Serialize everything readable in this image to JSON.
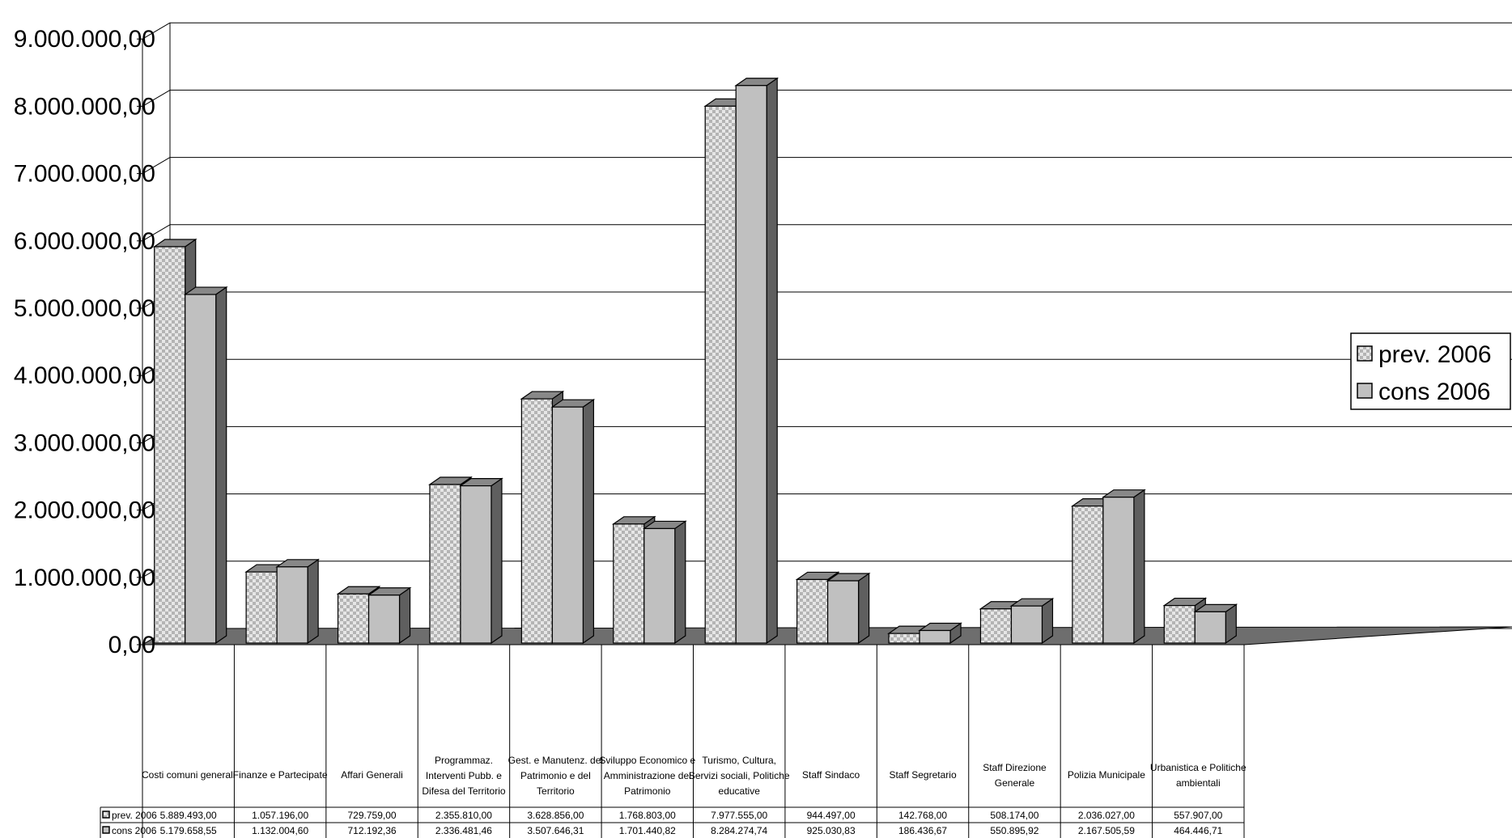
{
  "chart_data": {
    "type": "bar",
    "categories": [
      "Costi comuni generali",
      "Finanze e Partecipate",
      "Affari Generali",
      "Programmaz. Interventi Pubb. e Difesa del Territorio",
      "Gest. e Manutenz. del Patrimonio e del Territorio",
      "Sviluppo Economico e Amministrazione del Patrimonio",
      "Turismo, Cultura, Servizi sociali, Politiche educative",
      "Staff Sindaco",
      "Staff Segretario",
      "Staff Direzione Generale",
      "Polizia Municipale",
      "Urbanistica e Politiche ambientali"
    ],
    "category_lines": [
      [
        "Costi comuni generali"
      ],
      [
        "Finanze e Partecipate"
      ],
      [
        "Affari Generali"
      ],
      [
        "Programmaz.",
        "Interventi Pubb. e",
        "Difesa del Territorio"
      ],
      [
        "Gest. e Manutenz. del",
        "Patrimonio e del",
        "Territorio"
      ],
      [
        "Sviluppo Economico e",
        "Amministrazione del",
        "Patrimonio"
      ],
      [
        "Turismo, Cultura,",
        "Servizi sociali, Politiche",
        "educative"
      ],
      [
        "Staff Sindaco"
      ],
      [
        "Staff Segretario"
      ],
      [
        "Staff Direzione",
        "Generale"
      ],
      [
        "Polizia Municipale"
      ],
      [
        "Urbanistica e Politiche",
        "ambientali"
      ]
    ],
    "series": [
      {
        "name": "prev. 2006",
        "pattern": "checker",
        "values": [
          5889493.0,
          1057196.0,
          729759.0,
          2355810.0,
          3628856.0,
          1768803.0,
          7977555.0,
          944497.0,
          142768.0,
          508174.0,
          2036027.0,
          557907.0
        ],
        "labels": [
          "5.889.493,00",
          "1.057.196,00",
          "729.759,00",
          "2.355.810,00",
          "3.628.856,00",
          "1.768.803,00",
          "7.977.555,00",
          "944.497,00",
          "142.768,00",
          "508.174,00",
          "2.036.027,00",
          "557.907,00"
        ]
      },
      {
        "name": "cons 2006",
        "pattern": "solid",
        "values": [
          5179658.55,
          1132004.6,
          712192.36,
          2336481.46,
          3507646.31,
          1701440.82,
          8284274.74,
          925030.83,
          186436.67,
          550895.92,
          2167505.59,
          464446.71
        ],
        "labels": [
          "5.179.658,55",
          "1.132.004,60",
          "712.192,36",
          "2.336.481,46",
          "3.507.646,31",
          "1.701.440,82",
          "8.284.274,74",
          "925.030,83",
          "186.436,67",
          "550.895,92",
          "2.167.505,59",
          "464.446,71"
        ]
      }
    ],
    "yticks": [
      "0,00",
      "1.000.000,00",
      "2.000.000,00",
      "3.000.000,00",
      "4.000.000,00",
      "5.000.000,00",
      "6.000.000,00",
      "7.000.000,00",
      "8.000.000,00",
      "9.000.000,00"
    ],
    "ylim": [
      0,
      9000000
    ],
    "style": "3d-clustered-column",
    "grid": true,
    "legend": "right",
    "data_table": true,
    "colors": {
      "prev_light": "#e6e6e6",
      "prev_dark": "#b4b4b4",
      "cons_fill": "#c0c0c0",
      "side": "#5f5f5f",
      "top": "#888888",
      "floor": "#6e6e6e"
    }
  }
}
